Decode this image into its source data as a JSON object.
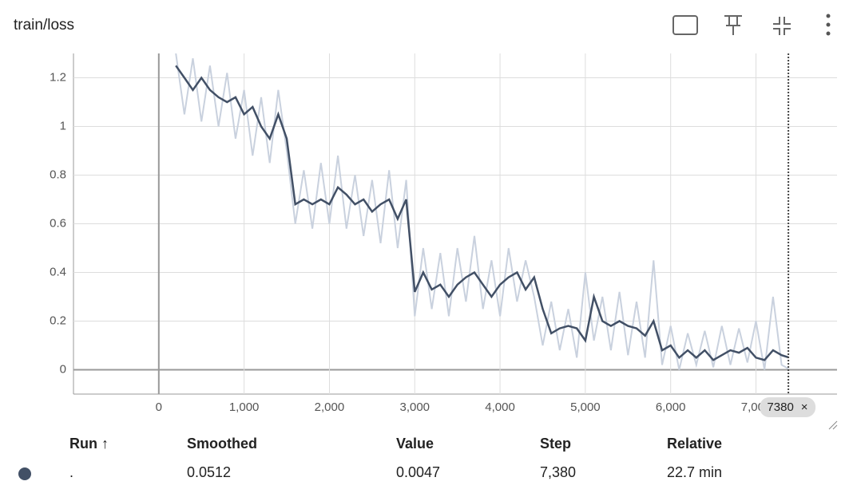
{
  "header": {
    "title": "train/loss"
  },
  "chart_data": {
    "type": "line",
    "x": [
      200,
      300,
      400,
      500,
      600,
      700,
      800,
      900,
      1000,
      1100,
      1200,
      1300,
      1400,
      1500,
      1600,
      1700,
      1800,
      1900,
      2000,
      2100,
      2200,
      2300,
      2400,
      2500,
      2600,
      2700,
      2800,
      2900,
      3000,
      3100,
      3200,
      3300,
      3400,
      3500,
      3600,
      3700,
      3800,
      3900,
      4000,
      4100,
      4200,
      4300,
      4400,
      4500,
      4600,
      4700,
      4800,
      4900,
      5000,
      5100,
      5200,
      5300,
      5400,
      5500,
      5600,
      5700,
      5800,
      5900,
      6000,
      6100,
      6200,
      6300,
      6400,
      6500,
      6600,
      6700,
      6800,
      6900,
      7000,
      7100,
      7200,
      7300,
      7380
    ],
    "series": [
      {
        "name": "raw",
        "color": "#c9d1de",
        "values": [
          1.3,
          1.05,
          1.28,
          1.02,
          1.25,
          1.0,
          1.22,
          0.95,
          1.15,
          0.88,
          1.12,
          0.85,
          1.15,
          0.9,
          0.6,
          0.82,
          0.58,
          0.85,
          0.6,
          0.88,
          0.58,
          0.8,
          0.55,
          0.78,
          0.52,
          0.82,
          0.5,
          0.78,
          0.22,
          0.5,
          0.25,
          0.48,
          0.22,
          0.5,
          0.28,
          0.55,
          0.25,
          0.45,
          0.22,
          0.5,
          0.28,
          0.45,
          0.3,
          0.1,
          0.28,
          0.08,
          0.25,
          0.05,
          0.4,
          0.12,
          0.3,
          0.08,
          0.32,
          0.06,
          0.28,
          0.05,
          0.45,
          0.02,
          0.18,
          0.0,
          0.15,
          0.02,
          0.16,
          0.01,
          0.18,
          0.02,
          0.17,
          0.03,
          0.2,
          0.0,
          0.3,
          0.02,
          0.0047
        ]
      },
      {
        "name": "smoothed",
        "color": "#425066",
        "values": [
          1.25,
          1.2,
          1.15,
          1.2,
          1.15,
          1.12,
          1.1,
          1.12,
          1.05,
          1.08,
          1.0,
          0.95,
          1.05,
          0.95,
          0.68,
          0.7,
          0.68,
          0.7,
          0.68,
          0.75,
          0.72,
          0.68,
          0.7,
          0.65,
          0.68,
          0.7,
          0.62,
          0.7,
          0.32,
          0.4,
          0.33,
          0.35,
          0.3,
          0.35,
          0.38,
          0.4,
          0.35,
          0.3,
          0.35,
          0.38,
          0.4,
          0.33,
          0.38,
          0.25,
          0.15,
          0.17,
          0.18,
          0.17,
          0.12,
          0.3,
          0.2,
          0.18,
          0.2,
          0.18,
          0.17,
          0.14,
          0.2,
          0.08,
          0.1,
          0.05,
          0.08,
          0.05,
          0.08,
          0.04,
          0.06,
          0.08,
          0.07,
          0.09,
          0.05,
          0.04,
          0.08,
          0.06,
          0.0512
        ]
      }
    ],
    "xlim": [
      -1000,
      7950
    ],
    "ylim": [
      -0.1,
      1.3
    ],
    "xticks": [
      0,
      {
        "value": 1000,
        "label": "1,000"
      },
      {
        "value": 2000,
        "label": "2,000"
      },
      {
        "value": 3000,
        "label": "3,000"
      },
      {
        "value": 4000,
        "label": "4,000"
      },
      {
        "value": 5000,
        "label": "5,000"
      },
      {
        "value": 6000,
        "label": "6,000"
      },
      {
        "value": 7000,
        "label": "7,000"
      }
    ],
    "yticks": [
      0,
      0.2,
      0.4,
      0.6,
      0.8,
      1,
      1.2
    ],
    "grid": true,
    "cursor_step": 7380,
    "cursor_close": "×"
  },
  "table": {
    "columns": [
      "Run ↑",
      "Smoothed",
      "Value",
      "Step",
      "Relative"
    ],
    "rows": [
      [
        ".",
        "0.0512",
        "0.0047",
        "7,380",
        "22.7 min"
      ]
    ]
  }
}
